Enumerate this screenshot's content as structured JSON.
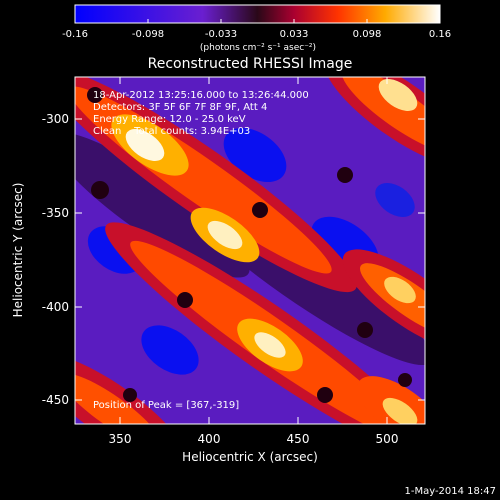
{
  "colorbar": {
    "ticks": [
      "-0.16",
      "-0.098",
      "-0.033",
      "0.033",
      "0.098",
      "0.16"
    ],
    "units": "(photons cm⁻² s⁻¹ asec⁻²)",
    "range": [
      -0.16,
      0.16
    ]
  },
  "plot": {
    "title": "Reconstructed RHESSI Image",
    "xlabel": "Heliocentric X (arcsec)",
    "ylabel": "Heliocentric Y (arcsec)",
    "xticks": [
      "350",
      "400",
      "450",
      "500"
    ],
    "yticks": [
      "-300",
      "-350",
      "-400",
      "-450"
    ],
    "xlim": [
      325,
      518
    ],
    "ylim": [
      -468,
      -278
    ]
  },
  "annotations": {
    "time": "18-Apr-2012 13:25:16.000 to 13:26:44.000",
    "detectors": "Detectors: 3F 5F 6F 7F 8F 9F, Att 4",
    "energy": "Energy Range: 12.0 - 25.0 keV",
    "clean": "Clean    Total counts: 3.94E+03",
    "peak": "Position of Peak = [367,-319]"
  },
  "footer": {
    "date": "1-May-2014 18:47"
  }
}
